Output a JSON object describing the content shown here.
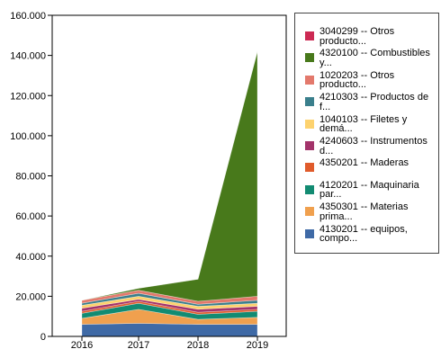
{
  "chart_data": {
    "type": "area",
    "stacked": true,
    "x": [
      "2016",
      "2017",
      "2018",
      "2019"
    ],
    "ylim": [
      0,
      160000
    ],
    "y_ticks": [
      "0",
      "20.000",
      "40.000",
      "60.000",
      "80.000",
      "100.000",
      "120.000",
      "140.000",
      "160.000"
    ],
    "legend_position": "right",
    "series": [
      {
        "name": "4130201 -- equipos, compo...",
        "color": "#3f6aa6",
        "values": [
          6000,
          6500,
          6000,
          6000
        ]
      },
      {
        "name": "4350301 -- Materias prima...",
        "color": "#f0a04e",
        "values": [
          3000,
          7000,
          2500,
          3500
        ]
      },
      {
        "name": "4120201 -- Maquinaria par...",
        "color": "#128b72",
        "values": [
          2500,
          3000,
          2500,
          3000
        ]
      },
      {
        "name": "4350201 -- Maderas",
        "color": "#e05b2b",
        "values": [
          1000,
          1000,
          1000,
          1000
        ]
      },
      {
        "name": "4240603 -- Instrumentos d...",
        "color": "#a3336a",
        "values": [
          1500,
          1000,
          1500,
          1500
        ]
      },
      {
        "name": "1040103 -- Filetes y demá...",
        "color": "#fdd26e",
        "values": [
          1500,
          1500,
          1500,
          1500
        ]
      },
      {
        "name": "4210303 -- Productos de f...",
        "color": "#3a7f8c",
        "values": [
          1000,
          1500,
          1000,
          1500
        ]
      },
      {
        "name": "1020203 -- Otros producto...",
        "color": "#e3796c",
        "values": [
          1500,
          1500,
          1500,
          2000
        ]
      },
      {
        "name": "4320100 -- Combustibles y...",
        "color": "#48791b",
        "values": [
          0,
          1000,
          11000,
          122000
        ]
      },
      {
        "name": "3040299 -- Otros producto...",
        "color": "#cc2a53",
        "values": [
          0,
          0,
          0,
          0
        ]
      }
    ]
  }
}
